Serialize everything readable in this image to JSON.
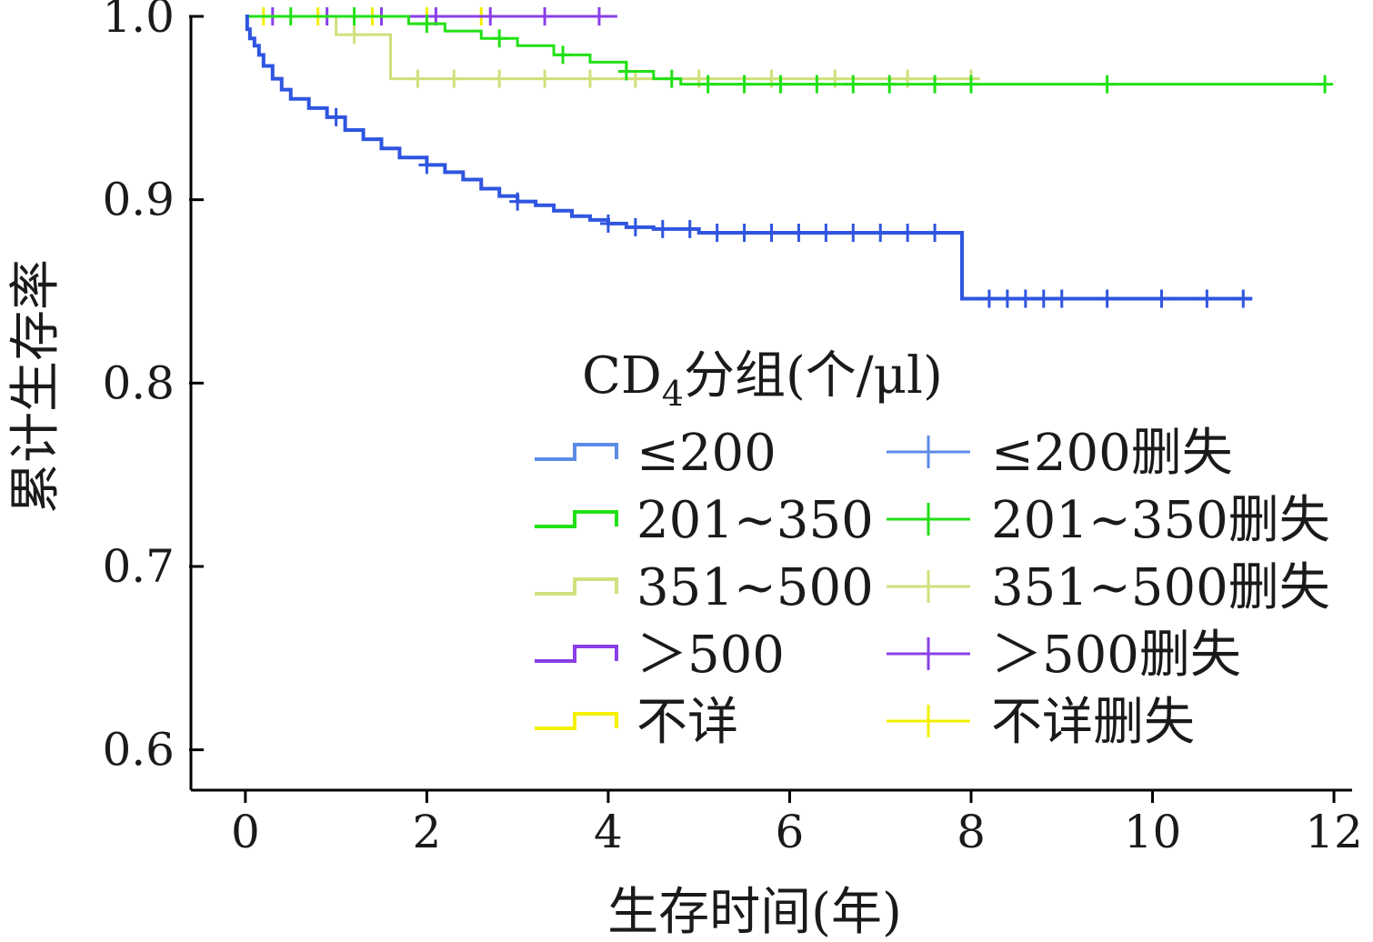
{
  "chart_data": {
    "type": "line",
    "step": true,
    "title": "",
    "xlabel": "生存时间(年)",
    "ylabel": "累计生存率",
    "xlim": [
      -0.6,
      12.2
    ],
    "ylim": [
      0.578,
      1.0
    ],
    "xticks": [
      "0",
      "2",
      "4",
      "6",
      "8",
      "10",
      "12"
    ],
    "xtick_values": [
      0,
      2,
      4,
      6,
      8,
      10,
      12
    ],
    "yticks": [
      "1.0",
      "0.9",
      "0.8",
      "0.7",
      "0.6"
    ],
    "ytick_values": [
      1.0,
      0.9,
      0.8,
      0.7,
      0.6
    ],
    "grid": false,
    "legend": {
      "placement": "bottom-right",
      "title_prefix": "CD",
      "title_subscript": "4",
      "title_suffix": "分组(个/μl)"
    },
    "series": [
      {
        "name": "≤200",
        "censor_name": "≤200删失",
        "color": "#2f55e0",
        "legend_color": "#5b8ce6",
        "x": [
          0,
          0.02,
          0.05,
          0.1,
          0.15,
          0.2,
          0.3,
          0.4,
          0.5,
          0.7,
          0.9,
          1.1,
          1.3,
          1.5,
          1.7,
          2.0,
          2.2,
          2.4,
          2.6,
          2.8,
          3.0,
          3.2,
          3.4,
          3.6,
          3.8,
          4.0,
          4.2,
          4.5,
          5.0,
          5.5,
          7.8,
          7.9,
          11.1
        ],
        "y": [
          1.0,
          0.993,
          0.988,
          0.984,
          0.979,
          0.973,
          0.966,
          0.96,
          0.955,
          0.95,
          0.945,
          0.938,
          0.933,
          0.928,
          0.923,
          0.919,
          0.915,
          0.911,
          0.906,
          0.902,
          0.899,
          0.897,
          0.894,
          0.891,
          0.889,
          0.887,
          0.885,
          0.884,
          0.882,
          0.882,
          0.882,
          0.846,
          0.846
        ],
        "censored_x": [
          1.0,
          2.0,
          3.0,
          4.0,
          4.3,
          4.6,
          4.9,
          5.2,
          5.5,
          5.8,
          6.1,
          6.4,
          6.7,
          7.0,
          7.3,
          7.6,
          8.2,
          8.4,
          8.6,
          8.8,
          9.0,
          9.5,
          10.1,
          10.6,
          11.0
        ]
      },
      {
        "name": "201~350",
        "censor_name": "201~350删失",
        "color": "#22e016",
        "legend_color": "#22e016",
        "x": [
          0,
          1.8,
          2.2,
          2.6,
          3.0,
          3.4,
          3.8,
          4.2,
          4.5,
          4.8,
          11.9
        ],
        "y": [
          1.0,
          0.996,
          0.992,
          0.988,
          0.984,
          0.979,
          0.975,
          0.97,
          0.966,
          0.963,
          0.963
        ],
        "censored_x": [
          0.5,
          1.2,
          2.0,
          2.8,
          3.5,
          4.2,
          4.7,
          5.1,
          5.5,
          5.9,
          6.3,
          6.7,
          7.1,
          7.6,
          8.0,
          9.5,
          11.9
        ]
      },
      {
        "name": "351~500",
        "censor_name": "351~500删失",
        "color": "#d0e07c",
        "legend_color": "#d0e07c",
        "x": [
          0,
          1.0,
          1.6,
          8.1
        ],
        "y": [
          1.0,
          0.99,
          0.966,
          0.966
        ],
        "censored_x": [
          1.2,
          1.9,
          2.3,
          2.8,
          3.3,
          3.8,
          4.3,
          5.0,
          5.8,
          6.5,
          7.3,
          8.0
        ]
      },
      {
        "name": "＞500",
        "censor_name": "＞500删失",
        "color": "#8a3fe8",
        "legend_color": "#8a3fe8",
        "x": [
          0,
          4.1
        ],
        "y": [
          1.0,
          1.0
        ],
        "censored_x": [
          0.3,
          0.9,
          1.5,
          2.1,
          2.7,
          3.3,
          3.9
        ]
      },
      {
        "name": "不详",
        "censor_name": "不详删失",
        "color": "#f4f000",
        "legend_color": "#f4f000",
        "x": [
          0,
          2.7
        ],
        "y": [
          1.0,
          1.0
        ],
        "censored_x": [
          0.2,
          0.8,
          1.4,
          2.0,
          2.6
        ]
      }
    ]
  }
}
